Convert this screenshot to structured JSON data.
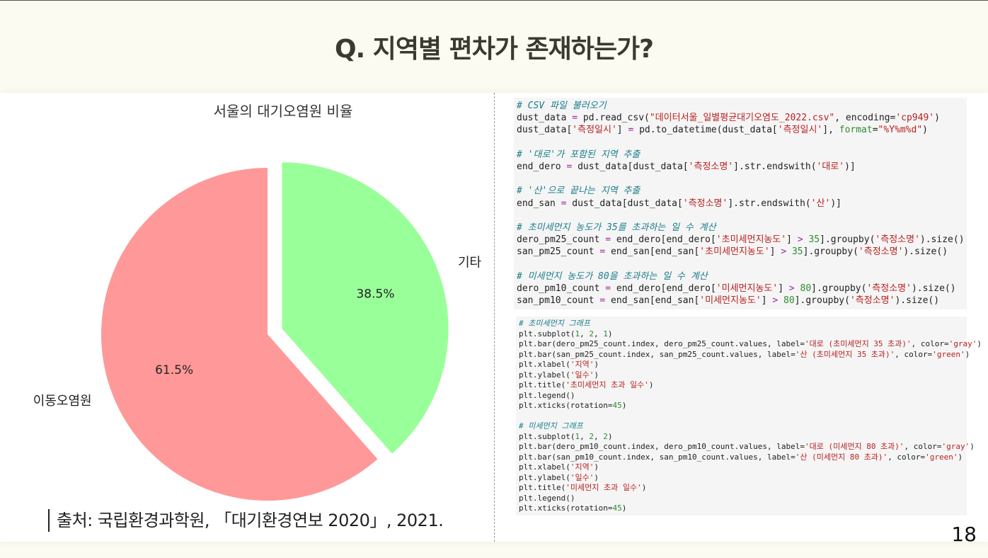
{
  "slide": {
    "title": "Q. 지역별 편차가 존재하는가?",
    "caption": "출처: 국립환경과학원, 「대기환경연보 2020」, 2021.",
    "page_number": "18"
  },
  "chart_data": {
    "type": "pie",
    "title": "서울의 대기오염원 비율",
    "slices": [
      {
        "label": "이동오염원",
        "value": 61.5,
        "value_label": "61.5%",
        "color": "#ff9999"
      },
      {
        "label": "기타",
        "value": 38.5,
        "value_label": "38.5%",
        "color": "#99ff99",
        "exploded": true
      }
    ],
    "start_angle_deg": 90
  },
  "code": {
    "block1": [
      [
        {
          "c": "cm",
          "t": "# CSV 파일 불러오기"
        }
      ],
      [
        {
          "t": "dust_data "
        },
        {
          "c": "k",
          "t": "="
        },
        {
          "t": " pd.read_csv("
        },
        {
          "c": "s",
          "t": "\"데이터서울_일별평균대기오염도_2022.csv\""
        },
        {
          "t": ", encoding="
        },
        {
          "c": "s",
          "t": "'cp949'"
        },
        {
          "t": ")"
        }
      ],
      [
        {
          "t": "dust_data["
        },
        {
          "c": "s",
          "t": "'측정일시'"
        },
        {
          "t": "] "
        },
        {
          "c": "k",
          "t": "="
        },
        {
          "t": " pd.to_datetime(dust_data["
        },
        {
          "c": "s",
          "t": "'측정일시'"
        },
        {
          "t": "], "
        },
        {
          "c": "n",
          "t": "format"
        },
        {
          "t": "="
        },
        {
          "c": "s",
          "t": "\"%Y%m%d\""
        },
        {
          "t": ")"
        }
      ],
      [
        {
          "t": ""
        }
      ],
      [
        {
          "c": "cm",
          "t": "# '대로'가 포함된 지역 추출"
        }
      ],
      [
        {
          "t": "end_dero "
        },
        {
          "c": "k",
          "t": "="
        },
        {
          "t": " dust_data[dust_data["
        },
        {
          "c": "s",
          "t": "'측정소명'"
        },
        {
          "t": "].str.endswith("
        },
        {
          "c": "s",
          "t": "'대로'"
        },
        {
          "t": ")]"
        }
      ],
      [
        {
          "t": ""
        }
      ],
      [
        {
          "c": "cm",
          "t": "# '산'으로 끝나는 지역 추출"
        }
      ],
      [
        {
          "t": "end_san "
        },
        {
          "c": "k",
          "t": "="
        },
        {
          "t": " dust_data[dust_data["
        },
        {
          "c": "s",
          "t": "'측정소명'"
        },
        {
          "t": "].str.endswith("
        },
        {
          "c": "s",
          "t": "'산'"
        },
        {
          "t": ")]"
        }
      ],
      [
        {
          "t": ""
        }
      ],
      [
        {
          "c": "cm",
          "t": "# 초미세먼지 농도가 35를 초과하는 일 수 계산"
        }
      ],
      [
        {
          "t": "dero_pm25_count "
        },
        {
          "c": "k",
          "t": "="
        },
        {
          "t": " end_dero[end_dero["
        },
        {
          "c": "s",
          "t": "'초미세먼지농도'"
        },
        {
          "t": "] "
        },
        {
          "c": "k",
          "t": ">"
        },
        {
          "t": " "
        },
        {
          "c": "n",
          "t": "35"
        },
        {
          "t": "].groupby("
        },
        {
          "c": "s",
          "t": "'측정소명'"
        },
        {
          "t": ").size()"
        }
      ],
      [
        {
          "t": "san_pm25_count "
        },
        {
          "c": "k",
          "t": "="
        },
        {
          "t": " end_san[end_san["
        },
        {
          "c": "s",
          "t": "'초미세먼지농도'"
        },
        {
          "t": "] "
        },
        {
          "c": "k",
          "t": ">"
        },
        {
          "t": " "
        },
        {
          "c": "n",
          "t": "35"
        },
        {
          "t": "].groupby("
        },
        {
          "c": "s",
          "t": "'측정소명'"
        },
        {
          "t": ").size()"
        }
      ],
      [
        {
          "t": ""
        }
      ],
      [
        {
          "c": "cm",
          "t": "# 미세먼지 농도가 80을 초과하는 일 수 계산"
        }
      ],
      [
        {
          "t": "dero_pm10_count "
        },
        {
          "c": "k",
          "t": "="
        },
        {
          "t": " end_dero[end_dero["
        },
        {
          "c": "s",
          "t": "'미세먼지농도'"
        },
        {
          "t": "] "
        },
        {
          "c": "k",
          "t": ">"
        },
        {
          "t": " "
        },
        {
          "c": "n",
          "t": "80"
        },
        {
          "t": "].groupby("
        },
        {
          "c": "s",
          "t": "'측정소명'"
        },
        {
          "t": ").size()"
        }
      ],
      [
        {
          "t": "san_pm10_count "
        },
        {
          "c": "k",
          "t": "="
        },
        {
          "t": " end_san[end_san["
        },
        {
          "c": "s",
          "t": "'미세먼지농도'"
        },
        {
          "t": "] "
        },
        {
          "c": "k",
          "t": ">"
        },
        {
          "t": " "
        },
        {
          "c": "n",
          "t": "80"
        },
        {
          "t": "].groupby("
        },
        {
          "c": "s",
          "t": "'측정소명'"
        },
        {
          "t": ").size()"
        }
      ]
    ],
    "block2": [
      [
        {
          "c": "cm",
          "t": "# 초미세먼지 그래프"
        }
      ],
      [
        {
          "t": "plt.subplot("
        },
        {
          "c": "n",
          "t": "1"
        },
        {
          "t": ", "
        },
        {
          "c": "n",
          "t": "2"
        },
        {
          "t": ", "
        },
        {
          "c": "n",
          "t": "1"
        },
        {
          "t": ")"
        }
      ],
      [
        {
          "t": "plt.bar(dero_pm25_count.index, dero_pm25_count.values, label="
        },
        {
          "c": "s",
          "t": "'대로 (초미세먼지 35 초과)'"
        },
        {
          "t": ", color="
        },
        {
          "c": "s",
          "t": "'gray'"
        },
        {
          "t": ")"
        }
      ],
      [
        {
          "t": "plt.bar(san_pm25_count.index, san_pm25_count.values, label="
        },
        {
          "c": "s",
          "t": "'산 (초미세먼지 35 초과)'"
        },
        {
          "t": ", color="
        },
        {
          "c": "s",
          "t": "'green'"
        },
        {
          "t": ")"
        }
      ],
      [
        {
          "t": "plt.xlabel("
        },
        {
          "c": "s",
          "t": "'지역'"
        },
        {
          "t": ")"
        }
      ],
      [
        {
          "t": "plt.ylabel("
        },
        {
          "c": "s",
          "t": "'일수'"
        },
        {
          "t": ")"
        }
      ],
      [
        {
          "t": "plt.title("
        },
        {
          "c": "s",
          "t": "'초미세먼지 초과 일수'"
        },
        {
          "t": ")"
        }
      ],
      [
        {
          "t": "plt.legend()"
        }
      ],
      [
        {
          "t": "plt.xticks(rotation="
        },
        {
          "c": "n",
          "t": "45"
        },
        {
          "t": ")"
        }
      ],
      [
        {
          "t": ""
        }
      ],
      [
        {
          "c": "cm",
          "t": "# 미세먼지 그래프"
        }
      ],
      [
        {
          "t": "plt.subplot("
        },
        {
          "c": "n",
          "t": "1"
        },
        {
          "t": ", "
        },
        {
          "c": "n",
          "t": "2"
        },
        {
          "t": ", "
        },
        {
          "c": "n",
          "t": "2"
        },
        {
          "t": ")"
        }
      ],
      [
        {
          "t": "plt.bar(dero_pm10_count.index, dero_pm10_count.values, label="
        },
        {
          "c": "s",
          "t": "'대로 (미세먼지 80 초과)'"
        },
        {
          "t": ", color="
        },
        {
          "c": "s",
          "t": "'gray'"
        },
        {
          "t": ")"
        }
      ],
      [
        {
          "t": "plt.bar(san_pm10_count.index, san_pm10_count.values, label="
        },
        {
          "c": "s",
          "t": "'산 (미세먼지 80 초과)'"
        },
        {
          "t": ", color="
        },
        {
          "c": "s",
          "t": "'green'"
        },
        {
          "t": ")"
        }
      ],
      [
        {
          "t": "plt.xlabel("
        },
        {
          "c": "s",
          "t": "'지역'"
        },
        {
          "t": ")"
        }
      ],
      [
        {
          "t": "plt.ylabel("
        },
        {
          "c": "s",
          "t": "'일수'"
        },
        {
          "t": ")"
        }
      ],
      [
        {
          "t": "plt.title("
        },
        {
          "c": "s",
          "t": "'미세먼지 초과 일수'"
        },
        {
          "t": ")"
        }
      ],
      [
        {
          "t": "plt.legend()"
        }
      ],
      [
        {
          "t": "plt.xticks(rotation="
        },
        {
          "c": "n",
          "t": "45"
        },
        {
          "t": ")"
        }
      ]
    ]
  }
}
